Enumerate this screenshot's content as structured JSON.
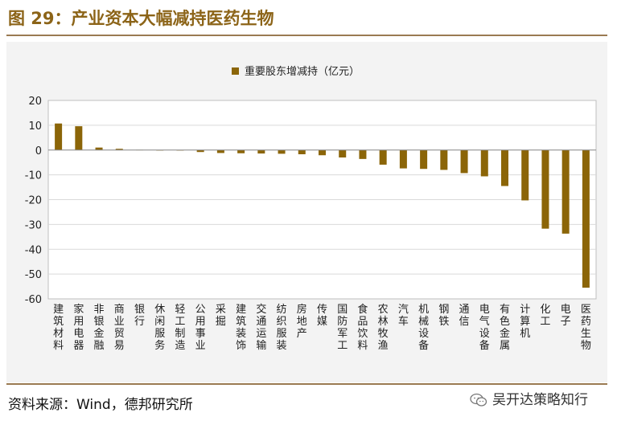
{
  "figure": {
    "title": "图 29：产业资本大幅减持医药生物",
    "source": "资料来源：Wind，德邦研究所",
    "watermark": "吴开达策略知行",
    "watermark_icon": "wechat-icon"
  },
  "colors": {
    "bar": "#8b6508",
    "title": "#8c6418",
    "rule": "#9a7a52",
    "plot_bg": "#ffffff",
    "outer_bg": "#f3f3f3",
    "grid": "#d9d9d9"
  },
  "chart_data": {
    "type": "bar",
    "legend": "重要股东增减持（亿元）",
    "legend_position": "top-center",
    "ylim": [
      -60,
      20
    ],
    "yticks": [
      20,
      10,
      0,
      -10,
      -20,
      -30,
      -40,
      -50,
      -60
    ],
    "grid": true,
    "categories": [
      "建筑材料",
      "家用电器",
      "非银金融",
      "商业贸易",
      "银行",
      "休闲服务",
      "轻工制造",
      "公用事业",
      "采掘",
      "建筑装饰",
      "交通运输",
      "纺织服装",
      "房地产",
      "传媒",
      "国防军工",
      "食品饮料",
      "农林牧渔",
      "汽车",
      "机械设备",
      "钢铁",
      "通信",
      "电气设备",
      "有色金属",
      "计算机",
      "化工",
      "电子",
      "医药生物"
    ],
    "values": [
      10.7,
      9.6,
      1.0,
      0.5,
      0.1,
      0.0,
      -0.2,
      -0.8,
      -1.2,
      -1.3,
      -1.4,
      -1.5,
      -1.7,
      -2.1,
      -3.0,
      -3.6,
      -5.9,
      -7.4,
      -7.6,
      -8.0,
      -9.3,
      -10.6,
      -14.5,
      -20.3,
      -31.7,
      -33.7,
      -55.5
    ]
  }
}
